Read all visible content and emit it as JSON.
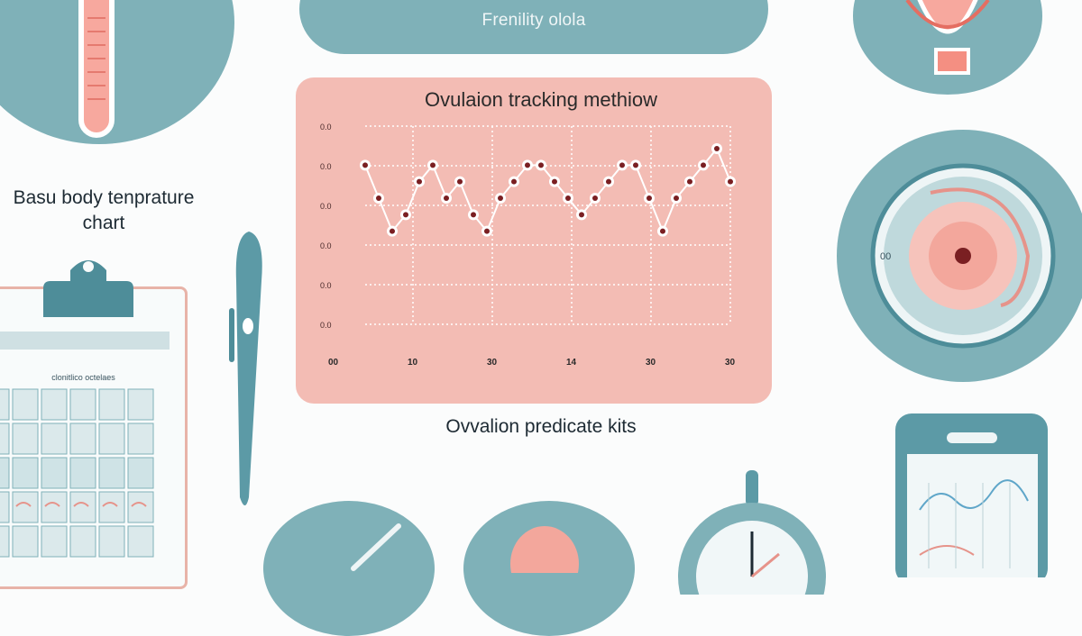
{
  "banner": {
    "subtitle": "Frenility olola"
  },
  "labels": {
    "bbt_line1": "Basu body tenprature",
    "bbt_line2": "chart",
    "kits": "Ovvalion predicate kits"
  },
  "calendar": {
    "header": "clonitlico octelaes"
  },
  "chart": {
    "title": "Ovulaion tracking methiow"
  },
  "chart_data": {
    "type": "scatter",
    "title": "Ovulaion tracking methiow",
    "y_tick_labels": [
      "0.0",
      "0.0",
      "0.0",
      "0.0",
      "0.0",
      "0.0"
    ],
    "x_tick_labels": [
      "00",
      "10",
      "30",
      "14",
      "30",
      "30"
    ],
    "grid": true,
    "series": [
      {
        "name": "",
        "values": [
          1.0,
          0.9,
          0.8,
          0.85,
          0.95,
          1.0,
          0.9,
          0.95,
          0.85,
          0.8,
          0.9,
          0.95,
          1.0,
          1.0,
          0.95,
          0.9,
          0.85,
          0.9,
          0.95,
          1.0,
          1.0,
          0.9,
          0.8,
          0.9,
          0.95,
          1.0,
          1.05,
          0.95
        ]
      }
    ]
  },
  "gauge": {
    "left_label": "00"
  },
  "colors": {
    "teal": "#7fb1b8",
    "dark_teal": "#4e8d99",
    "salmon": "#f3bcb4",
    "pink": "#e6938a",
    "dot": "#7a1f22"
  }
}
